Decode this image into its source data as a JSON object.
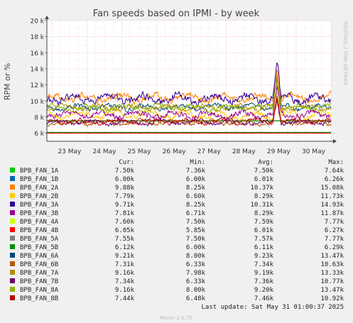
{
  "chart_data": {
    "type": "line",
    "title": "Fan speeds based on IPMI - by week",
    "ylabel": "RPM or %",
    "side_label": "RRDTOOL / TOBI OETIKER",
    "ylim": [
      5000,
      20000
    ],
    "y_ticks": [
      {
        "value": 6000,
        "label": "6 k"
      },
      {
        "value": 8000,
        "label": "8 k"
      },
      {
        "value": 10000,
        "label": "10 k"
      },
      {
        "value": 12000,
        "label": "12 k"
      },
      {
        "value": 14000,
        "label": "14 k"
      },
      {
        "value": 16000,
        "label": "16 k"
      },
      {
        "value": 18000,
        "label": "18 k"
      },
      {
        "value": 20000,
        "label": "20 k"
      }
    ],
    "x_ticks": [
      "23 May",
      "24 May",
      "25 May",
      "26 May",
      "27 May",
      "28 May",
      "29 May",
      "30 May"
    ],
    "x_tick_positions": [
      0.5,
      1.5,
      2.5,
      3.5,
      4.5,
      5.5,
      6.5,
      7.5
    ],
    "x_range": [
      -0.15,
      8.0
    ],
    "legend_headers": {
      "cur": "Cur:",
      "min": "Min:",
      "avg": "Avg:",
      "max": "Max:"
    },
    "series": [
      {
        "name": "BPB_FAN_1A",
        "color": "#00cc00",
        "cur": "7.50k",
        "min": "7.36k",
        "avg": "7.50k",
        "max": "7.64k",
        "level": 7500,
        "noise": 40
      },
      {
        "name": "BPB_FAN_1B",
        "color": "#0066b3",
        "cur": "6.00k",
        "min": "6.00k",
        "avg": "6.01k",
        "max": "6.26k",
        "level": 6010,
        "noise": 15
      },
      {
        "name": "BPB_FAN_2A",
        "color": "#ff8000",
        "cur": "9.88k",
        "min": "8.25k",
        "avg": "10.37k",
        "max": "15.08k",
        "level": 10370,
        "noise": 450
      },
      {
        "name": "BPB_FAN_2B",
        "color": "#ffcc00",
        "cur": "7.79k",
        "min": "6.60k",
        "avg": "8.29k",
        "max": "11.73k",
        "level": 8290,
        "noise": 380
      },
      {
        "name": "BPB_FAN_3A",
        "color": "#330099",
        "cur": "9.71k",
        "min": "8.25k",
        "avg": "10.31k",
        "max": "14.93k",
        "level": 10310,
        "noise": 480
      },
      {
        "name": "BPB_FAN_3B",
        "color": "#990099",
        "cur": "7.81k",
        "min": "6.71k",
        "avg": "8.29k",
        "max": "11.87k",
        "level": 8290,
        "noise": 400
      },
      {
        "name": "BPB_FAN_4A",
        "color": "#ccff00",
        "cur": "7.60k",
        "min": "7.50k",
        "avg": "7.59k",
        "max": "7.77k",
        "level": 7590,
        "noise": 40
      },
      {
        "name": "BPB_FAN_4B",
        "color": "#ff0000",
        "cur": "6.05k",
        "min": "5.85k",
        "avg": "6.01k",
        "max": "6.27k",
        "level": 6010,
        "noise": 25
      },
      {
        "name": "BPB_FAN_5A",
        "color": "#808080",
        "cur": "7.55k",
        "min": "7.50k",
        "avg": "7.57k",
        "max": "7.77k",
        "level": 7570,
        "noise": 40
      },
      {
        "name": "BPB_FAN_5B",
        "color": "#008f00",
        "cur": "6.12k",
        "min": "6.00k",
        "avg": "6.11k",
        "max": "6.29k",
        "level": 6110,
        "noise": 25
      },
      {
        "name": "BPB_FAN_6A",
        "color": "#00487d",
        "cur": "9.21k",
        "min": "8.00k",
        "avg": "9.23k",
        "max": "13.47k",
        "level": 9230,
        "noise": 300
      },
      {
        "name": "BPB_FAN_6B",
        "color": "#b35a00",
        "cur": "7.31k",
        "min": "6.33k",
        "avg": "7.34k",
        "max": "10.63k",
        "level": 7340,
        "noise": 260
      },
      {
        "name": "BPB_FAN_7A",
        "color": "#b38f00",
        "cur": "9.16k",
        "min": "7.98k",
        "avg": "9.19k",
        "max": "13.33k",
        "level": 9190,
        "noise": 300
      },
      {
        "name": "BPB_FAN_7B",
        "color": "#6b006b",
        "cur": "7.34k",
        "min": "6.33k",
        "avg": "7.36k",
        "max": "10.77k",
        "level": 7360,
        "noise": 260
      },
      {
        "name": "BPB_FAN_8A",
        "color": "#8fb300",
        "cur": "9.16k",
        "min": "8.00k",
        "avg": "9.20k",
        "max": "13.47k",
        "level": 9200,
        "noise": 300
      },
      {
        "name": "BPB_FAN_8B",
        "color": "#b30000",
        "cur": "7.44k",
        "min": "6.48k",
        "avg": "7.46k",
        "max": "10.92k",
        "level": 7460,
        "noise": 260
      }
    ],
    "spike_position": 6.45,
    "last_update": "Last update: Sat May 31 01:00:37 2025",
    "footer": "Munin 2.0.75",
    "grid": true
  }
}
